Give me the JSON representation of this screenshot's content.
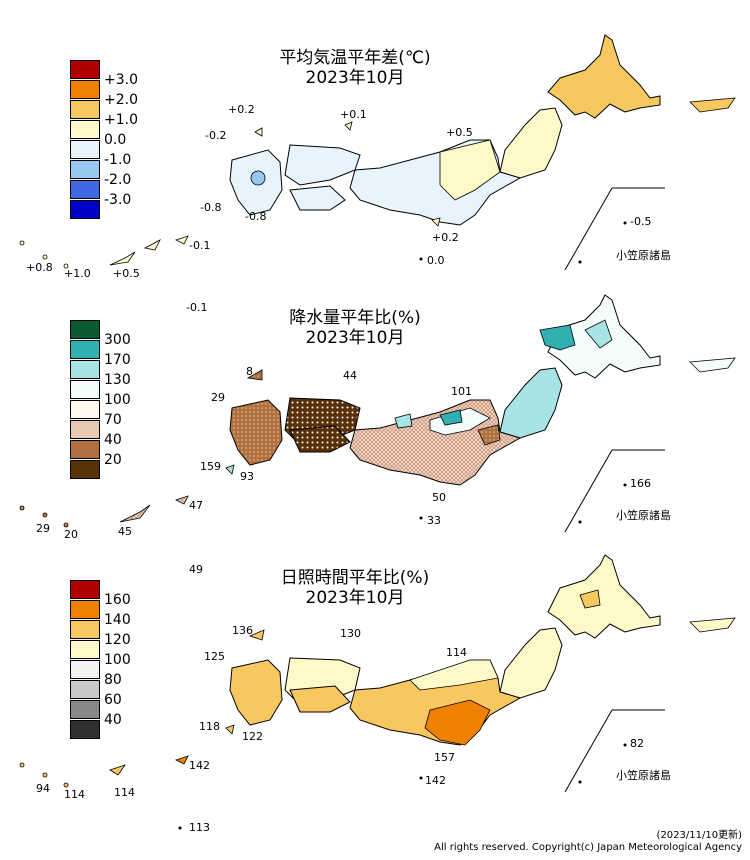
{
  "panels": [
    {
      "title_line1": "平均気温平年差(℃)",
      "title_line2": "2023年10月",
      "legend": [
        {
          "label": "+3.0",
          "color": "#b00000"
        },
        {
          "label": "+2.0",
          "color": "#f08000"
        },
        {
          "label": "+1.0",
          "color": "#f8c860"
        },
        {
          "label": "0.0",
          "color": "#fff8c8"
        },
        {
          "label": "-1.0",
          "color": "#e8f4fc"
        },
        {
          "label": "-2.0",
          "color": "#98c8f0"
        },
        {
          "label": "-3.0",
          "color": "#4068e0"
        },
        {
          "label": "",
          "color": "#0000c8"
        }
      ],
      "values": [
        "+0.2",
        "+0.1",
        "-0.2",
        "+0.5",
        "-0.8",
        "-0.8",
        "+0.2",
        "0.0",
        "-0.1",
        "+0.8",
        "+1.0",
        "+0.5",
        "-0.1",
        "-0.5"
      ],
      "ogasawara_label": "小笠原諸島"
    },
    {
      "title_line1": "降水量平年比(%)",
      "title_line2": "2023年10月",
      "legend": [
        {
          "label": "300",
          "color": "#0a5a32"
        },
        {
          "label": "170",
          "color": "#30b0b0"
        },
        {
          "label": "130",
          "color": "#a8e4e4"
        },
        {
          "label": "100",
          "color": "#f4fcfc"
        },
        {
          "label": "70",
          "color": "#fff8ec"
        },
        {
          "label": "40",
          "color": "#e8c8b0"
        },
        {
          "label": "20",
          "color": "#b07040"
        },
        {
          "label": "",
          "color": "#5a3008"
        }
      ],
      "values": [
        "8",
        "44",
        "29",
        "101",
        "159",
        "93",
        "50",
        "33",
        "47",
        "29",
        "20",
        "45",
        "166"
      ],
      "ogasawara_label": "小笠原諸島"
    },
    {
      "title_line1": "日照時間平年比(%)",
      "title_line2": "2023年10月",
      "legend": [
        {
          "label": "160",
          "color": "#b00000"
        },
        {
          "label": "140",
          "color": "#f08000"
        },
        {
          "label": "120",
          "color": "#f8c860"
        },
        {
          "label": "100",
          "color": "#fff8c8"
        },
        {
          "label": "80",
          "color": "#f4f4f4"
        },
        {
          "label": "60",
          "color": "#c8c8c8"
        },
        {
          "label": "40",
          "color": "#888888"
        },
        {
          "label": "",
          "color": "#303030"
        }
      ],
      "values": [
        "49",
        "136",
        "130",
        "125",
        "114",
        "118",
        "122",
        "157",
        "142",
        "94",
        "114",
        "114",
        "142",
        "113",
        "82"
      ],
      "ogasawara_label": "小笠原諸島"
    }
  ],
  "footer": {
    "date": "(2023/11/10更新)",
    "copyright": "All rights reserved. Copyright(c) Japan Meteorological Agency"
  }
}
